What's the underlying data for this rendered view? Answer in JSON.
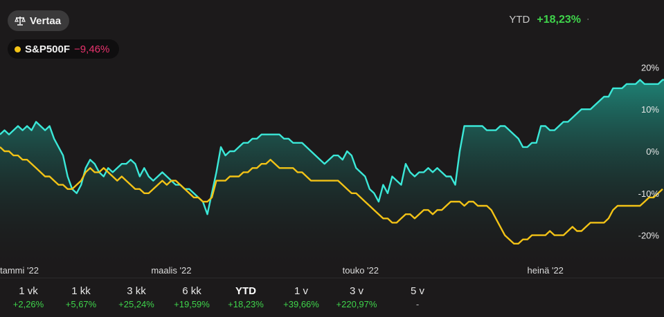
{
  "compare_button": {
    "label": "Vertaa",
    "icon": "scale-icon"
  },
  "legend": {
    "name": "S&P500F",
    "change": "−9,46%",
    "color": "#f3c316",
    "change_color": "#e8336d"
  },
  "ytd": {
    "label": "YTD",
    "value": "+18,23%",
    "marker": "·"
  },
  "colors": {
    "background": "#1c1a1b",
    "main_line": "#3be8d8",
    "compare_line": "#f3c316",
    "positive": "#3fd44b"
  },
  "periods": [
    {
      "label": "1 vk",
      "value": "+2,26%"
    },
    {
      "label": "1 kk",
      "value": "+5,67%"
    },
    {
      "label": "3 kk",
      "value": "+25,24%"
    },
    {
      "label": "6 kk",
      "value": "+19,59%"
    },
    {
      "label": "YTD",
      "value": "+18,23%",
      "active": true
    },
    {
      "label": "1 v",
      "value": "+39,66%"
    },
    {
      "label": "3 v",
      "value": "+220,97%"
    },
    {
      "label": "5 v",
      "value": "-"
    }
  ],
  "chart_data": {
    "type": "area",
    "xlabel": "",
    "ylabel": "",
    "x_ticks": [
      {
        "label": "tammi '22",
        "index": 0
      },
      {
        "label": "maalis '22",
        "index": 38
      },
      {
        "label": "touko '22",
        "index": 80
      },
      {
        "label": "heinä '22",
        "index": 121
      }
    ],
    "y_ticks": [
      20,
      10,
      0,
      -10,
      -20
    ],
    "y_tick_labels": [
      "20%",
      "10%",
      "0%",
      "-10%",
      "-20%"
    ],
    "ylim": [
      -25,
      23
    ],
    "x_count": 148,
    "grid": false,
    "series": [
      {
        "color": "#3be8d8",
        "fill": true,
        "values": [
          4,
          5,
          4,
          5,
          6,
          5,
          6,
          5,
          7,
          6,
          5,
          6,
          3,
          1,
          -1,
          -6,
          -9,
          -10,
          -8,
          -4,
          -2,
          -3,
          -5,
          -6,
          -4,
          -5,
          -4,
          -3,
          -3,
          -2,
          -3,
          -6,
          -4,
          -6,
          -7,
          -6,
          -5,
          -6,
          -7,
          -8,
          -8,
          -9,
          -9,
          -10,
          -11,
          -12,
          -15,
          -10,
          -5,
          1,
          -1,
          0,
          0,
          1,
          2,
          2,
          3,
          3,
          4,
          4,
          4,
          4,
          4,
          3,
          3,
          2,
          2,
          2,
          1,
          0,
          -1,
          -2,
          -3,
          -2,
          -1,
          -1,
          -2,
          0,
          -1,
          -4,
          -5,
          -6,
          -9,
          -10,
          -12,
          -8,
          -10,
          -6,
          -7,
          -8,
          -3,
          -5,
          -6,
          -5,
          -5,
          -4,
          -5,
          -4,
          -5,
          -6,
          -6,
          -8,
          0,
          6,
          6,
          6,
          6,
          6,
          5,
          5,
          5,
          6,
          6,
          5,
          4,
          3,
          1,
          1,
          2,
          2,
          6,
          6,
          5,
          5,
          6,
          7,
          7,
          8,
          9,
          10,
          10,
          10,
          11,
          12,
          13,
          13,
          15,
          15,
          15,
          16,
          16,
          16,
          17,
          16,
          16,
          16,
          16,
          17,
          17,
          18,
          18,
          18
        ]
      },
      {
        "name": "S&P500F",
        "color": "#f3c316",
        "fill": false,
        "values": [
          1,
          0,
          0,
          -1,
          -1,
          -2,
          -2,
          -3,
          -4,
          -5,
          -6,
          -6,
          -7,
          -8,
          -8,
          -9,
          -9,
          -8,
          -7,
          -5,
          -4,
          -5,
          -5,
          -4,
          -5,
          -6,
          -7,
          -6,
          -7,
          -8,
          -9,
          -9,
          -10,
          -10,
          -9,
          -8,
          -7,
          -8,
          -7,
          -7,
          -8,
          -9,
          -10,
          -11,
          -11,
          -12,
          -12,
          -11,
          -7,
          -7,
          -7,
          -6,
          -6,
          -6,
          -5,
          -5,
          -4,
          -4,
          -3,
          -3,
          -2,
          -3,
          -4,
          -4,
          -4,
          -4,
          -5,
          -5,
          -6,
          -7,
          -7,
          -7,
          -7,
          -7,
          -7,
          -7,
          -8,
          -9,
          -10,
          -10,
          -11,
          -12,
          -13,
          -14,
          -15,
          -16,
          -16,
          -17,
          -17,
          -16,
          -15,
          -15,
          -16,
          -15,
          -14,
          -14,
          -15,
          -14,
          -14,
          -13,
          -12,
          -12,
          -12,
          -13,
          -12,
          -12,
          -13,
          -13,
          -13,
          -14,
          -16,
          -18,
          -20,
          -21,
          -22,
          -22,
          -21,
          -21,
          -20,
          -20,
          -20,
          -20,
          -19,
          -20,
          -20,
          -20,
          -19,
          -18,
          -19,
          -19,
          -18,
          -17,
          -17,
          -17,
          -17,
          -16,
          -14,
          -13,
          -13,
          -13,
          -13,
          -13,
          -13,
          -12,
          -11,
          -11,
          -10,
          -9
        ]
      }
    ]
  }
}
